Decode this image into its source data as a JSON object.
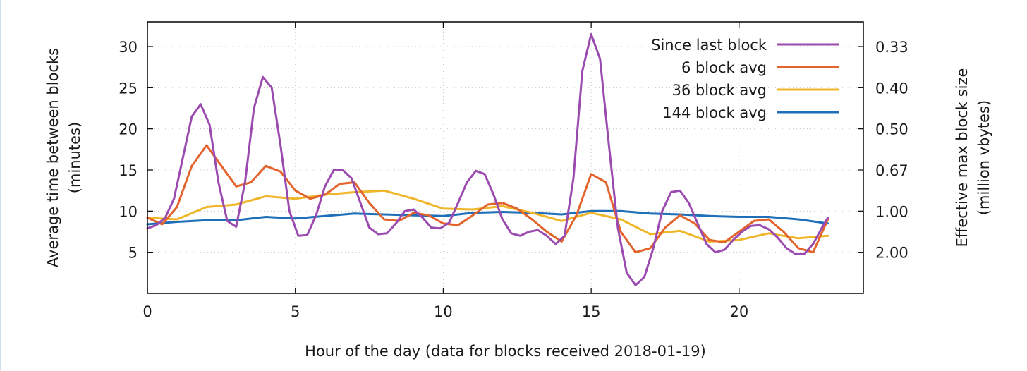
{
  "chart_data": {
    "type": "line",
    "title": "",
    "xlabel": "Hour of the day (data for blocks received 2018-01-19)",
    "ylabel": "Average time between blocks\n(minutes)",
    "y2label": "Effective max block size\n(million vbytes)",
    "xlim": [
      0,
      24.2
    ],
    "ylim": [
      0,
      33
    ],
    "xticks": [
      "0",
      "5",
      "10",
      "15",
      "20"
    ],
    "yticks": [
      "5",
      "10",
      "15",
      "20",
      "25",
      "30"
    ],
    "y2ticks": [
      "0.33",
      "0.40",
      "0.50",
      "0.67",
      "1.00",
      "2.00"
    ],
    "grid": true,
    "legend_position": "top-right",
    "series": [
      {
        "name": "Since last block",
        "color": "#9b4ab0",
        "x": [
          0,
          0.3,
          0.6,
          0.9,
          1.2,
          1.5,
          1.8,
          2.1,
          2.4,
          2.7,
          3.0,
          3.3,
          3.6,
          3.9,
          4.2,
          4.5,
          4.8,
          5.1,
          5.4,
          5.7,
          6.0,
          6.3,
          6.6,
          6.9,
          7.2,
          7.5,
          7.8,
          8.1,
          8.4,
          8.7,
          9.0,
          9.3,
          9.6,
          9.9,
          10.2,
          10.5,
          10.8,
          11.1,
          11.4,
          11.7,
          12.0,
          12.3,
          12.6,
          12.9,
          13.2,
          13.5,
          13.8,
          14.1,
          14.4,
          14.7,
          15.0,
          15.3,
          15.6,
          15.9,
          16.2,
          16.5,
          16.8,
          17.1,
          17.4,
          17.7,
          18.0,
          18.3,
          18.6,
          18.9,
          19.2,
          19.5,
          19.8,
          20.1,
          20.4,
          20.7,
          21.0,
          21.3,
          21.6,
          21.9,
          22.2,
          22.5,
          22.8,
          23.0
        ],
        "y": [
          7.9,
          8.3,
          9.2,
          11.5,
          16.5,
          21.5,
          23.0,
          20.5,
          13.5,
          8.8,
          8.1,
          13.5,
          22.5,
          26.3,
          25.0,
          18.0,
          10.0,
          7.0,
          7.1,
          9.5,
          13.0,
          15.0,
          15.0,
          14.0,
          11.0,
          8.0,
          7.2,
          7.3,
          8.5,
          10.0,
          10.2,
          9.2,
          8.0,
          7.9,
          8.6,
          11.0,
          13.5,
          14.9,
          14.5,
          12.0,
          9.0,
          7.3,
          7.0,
          7.5,
          7.7,
          7.0,
          6.0,
          7.0,
          14.0,
          27.0,
          31.5,
          28.5,
          18.0,
          8.0,
          2.5,
          1.0,
          2.0,
          5.5,
          10.0,
          12.3,
          12.5,
          11.0,
          8.5,
          6.0,
          5.0,
          5.3,
          6.5,
          7.5,
          8.2,
          8.3,
          7.8,
          6.8,
          5.5,
          4.8,
          4.8,
          6.0,
          8.0,
          9.2
        ]
      },
      {
        "name": "6 block avg",
        "color": "#e2632c",
        "x": [
          0,
          0.5,
          1.0,
          1.5,
          2.0,
          2.5,
          3.0,
          3.5,
          4.0,
          4.5,
          5.0,
          5.5,
          6.0,
          6.5,
          7.0,
          7.5,
          8.0,
          8.5,
          9.0,
          9.5,
          10.0,
          10.5,
          11.0,
          11.5,
          12.0,
          12.5,
          13.0,
          13.5,
          14.0,
          14.5,
          15.0,
          15.5,
          16.0,
          16.5,
          17.0,
          17.5,
          18.0,
          18.5,
          19.0,
          19.5,
          20.0,
          20.5,
          21.0,
          21.5,
          22.0,
          22.5,
          23.0
        ],
        "y": [
          9.2,
          8.4,
          10.5,
          15.5,
          18.0,
          15.5,
          13.0,
          13.5,
          15.5,
          14.8,
          12.5,
          11.5,
          12.0,
          13.3,
          13.5,
          11.0,
          9.0,
          8.8,
          9.8,
          9.5,
          8.5,
          8.3,
          9.5,
          10.8,
          11.0,
          10.3,
          9.0,
          7.5,
          6.3,
          9.5,
          14.5,
          13.5,
          7.5,
          5.0,
          5.5,
          8.0,
          9.5,
          8.5,
          6.5,
          6.2,
          7.5,
          8.8,
          9.0,
          7.5,
          5.5,
          5.0,
          9.0
        ]
      },
      {
        "name": "36 block avg",
        "color": "#f0b62a",
        "x": [
          0,
          1.0,
          2.0,
          3.0,
          4.0,
          5.0,
          6.0,
          7.0,
          8.0,
          9.0,
          10.0,
          11.0,
          12.0,
          13.0,
          14.0,
          15.0,
          16.0,
          17.0,
          18.0,
          19.0,
          20.0,
          21.0,
          22.0,
          23.0
        ],
        "y": [
          9.2,
          9.0,
          10.5,
          10.8,
          11.8,
          11.5,
          12.0,
          12.3,
          12.5,
          11.5,
          10.3,
          10.2,
          10.6,
          9.8,
          8.8,
          9.8,
          9.0,
          7.2,
          7.6,
          6.3,
          6.5,
          7.3,
          6.7,
          7.0
        ]
      },
      {
        "name": "144 block avg",
        "color": "#1f6fb8",
        "x": [
          0,
          1.0,
          2.0,
          3.0,
          4.0,
          5.0,
          6.0,
          7.0,
          8.0,
          9.0,
          10.0,
          11.0,
          12.0,
          13.0,
          14.0,
          15.0,
          16.0,
          17.0,
          18.0,
          19.0,
          20.0,
          21.0,
          22.0,
          23.0
        ],
        "y": [
          8.4,
          8.7,
          8.9,
          8.9,
          9.3,
          9.1,
          9.4,
          9.7,
          9.6,
          9.5,
          9.4,
          9.8,
          9.9,
          9.8,
          9.6,
          10.0,
          10.0,
          9.7,
          9.6,
          9.4,
          9.3,
          9.3,
          9.0,
          8.5
        ]
      }
    ]
  }
}
